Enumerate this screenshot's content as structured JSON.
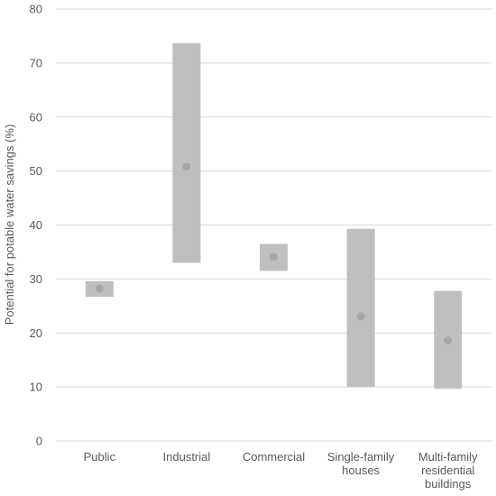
{
  "chart_data": {
    "type": "bar",
    "subtype": "floating range bars with mean markers",
    "title": "",
    "xlabel": "",
    "ylabel": "Potential for potable water savings (%)",
    "ylim": [
      0,
      80
    ],
    "yticks": [
      0,
      10,
      20,
      30,
      40,
      50,
      60,
      70,
      80
    ],
    "grid": "horizontal",
    "categories": [
      [
        "Public"
      ],
      [
        "Industrial"
      ],
      [
        "Commercial"
      ],
      [
        "Single-family",
        "houses"
      ],
      [
        "Multi-family",
        "residential",
        "buildings"
      ]
    ],
    "series": [
      {
        "name": "",
        "min": [
          26.7,
          33.0,
          31.5,
          10.0,
          9.7
        ],
        "max": [
          29.6,
          73.7,
          36.5,
          39.3,
          27.8
        ],
        "mean": [
          28.2,
          50.8,
          34.1,
          23.1,
          18.6
        ]
      }
    ],
    "colors": {
      "range_bar": "#bfbfbf",
      "marker": "#a6a6a6",
      "grid": "#d9d9d9",
      "text": "#595959"
    }
  }
}
